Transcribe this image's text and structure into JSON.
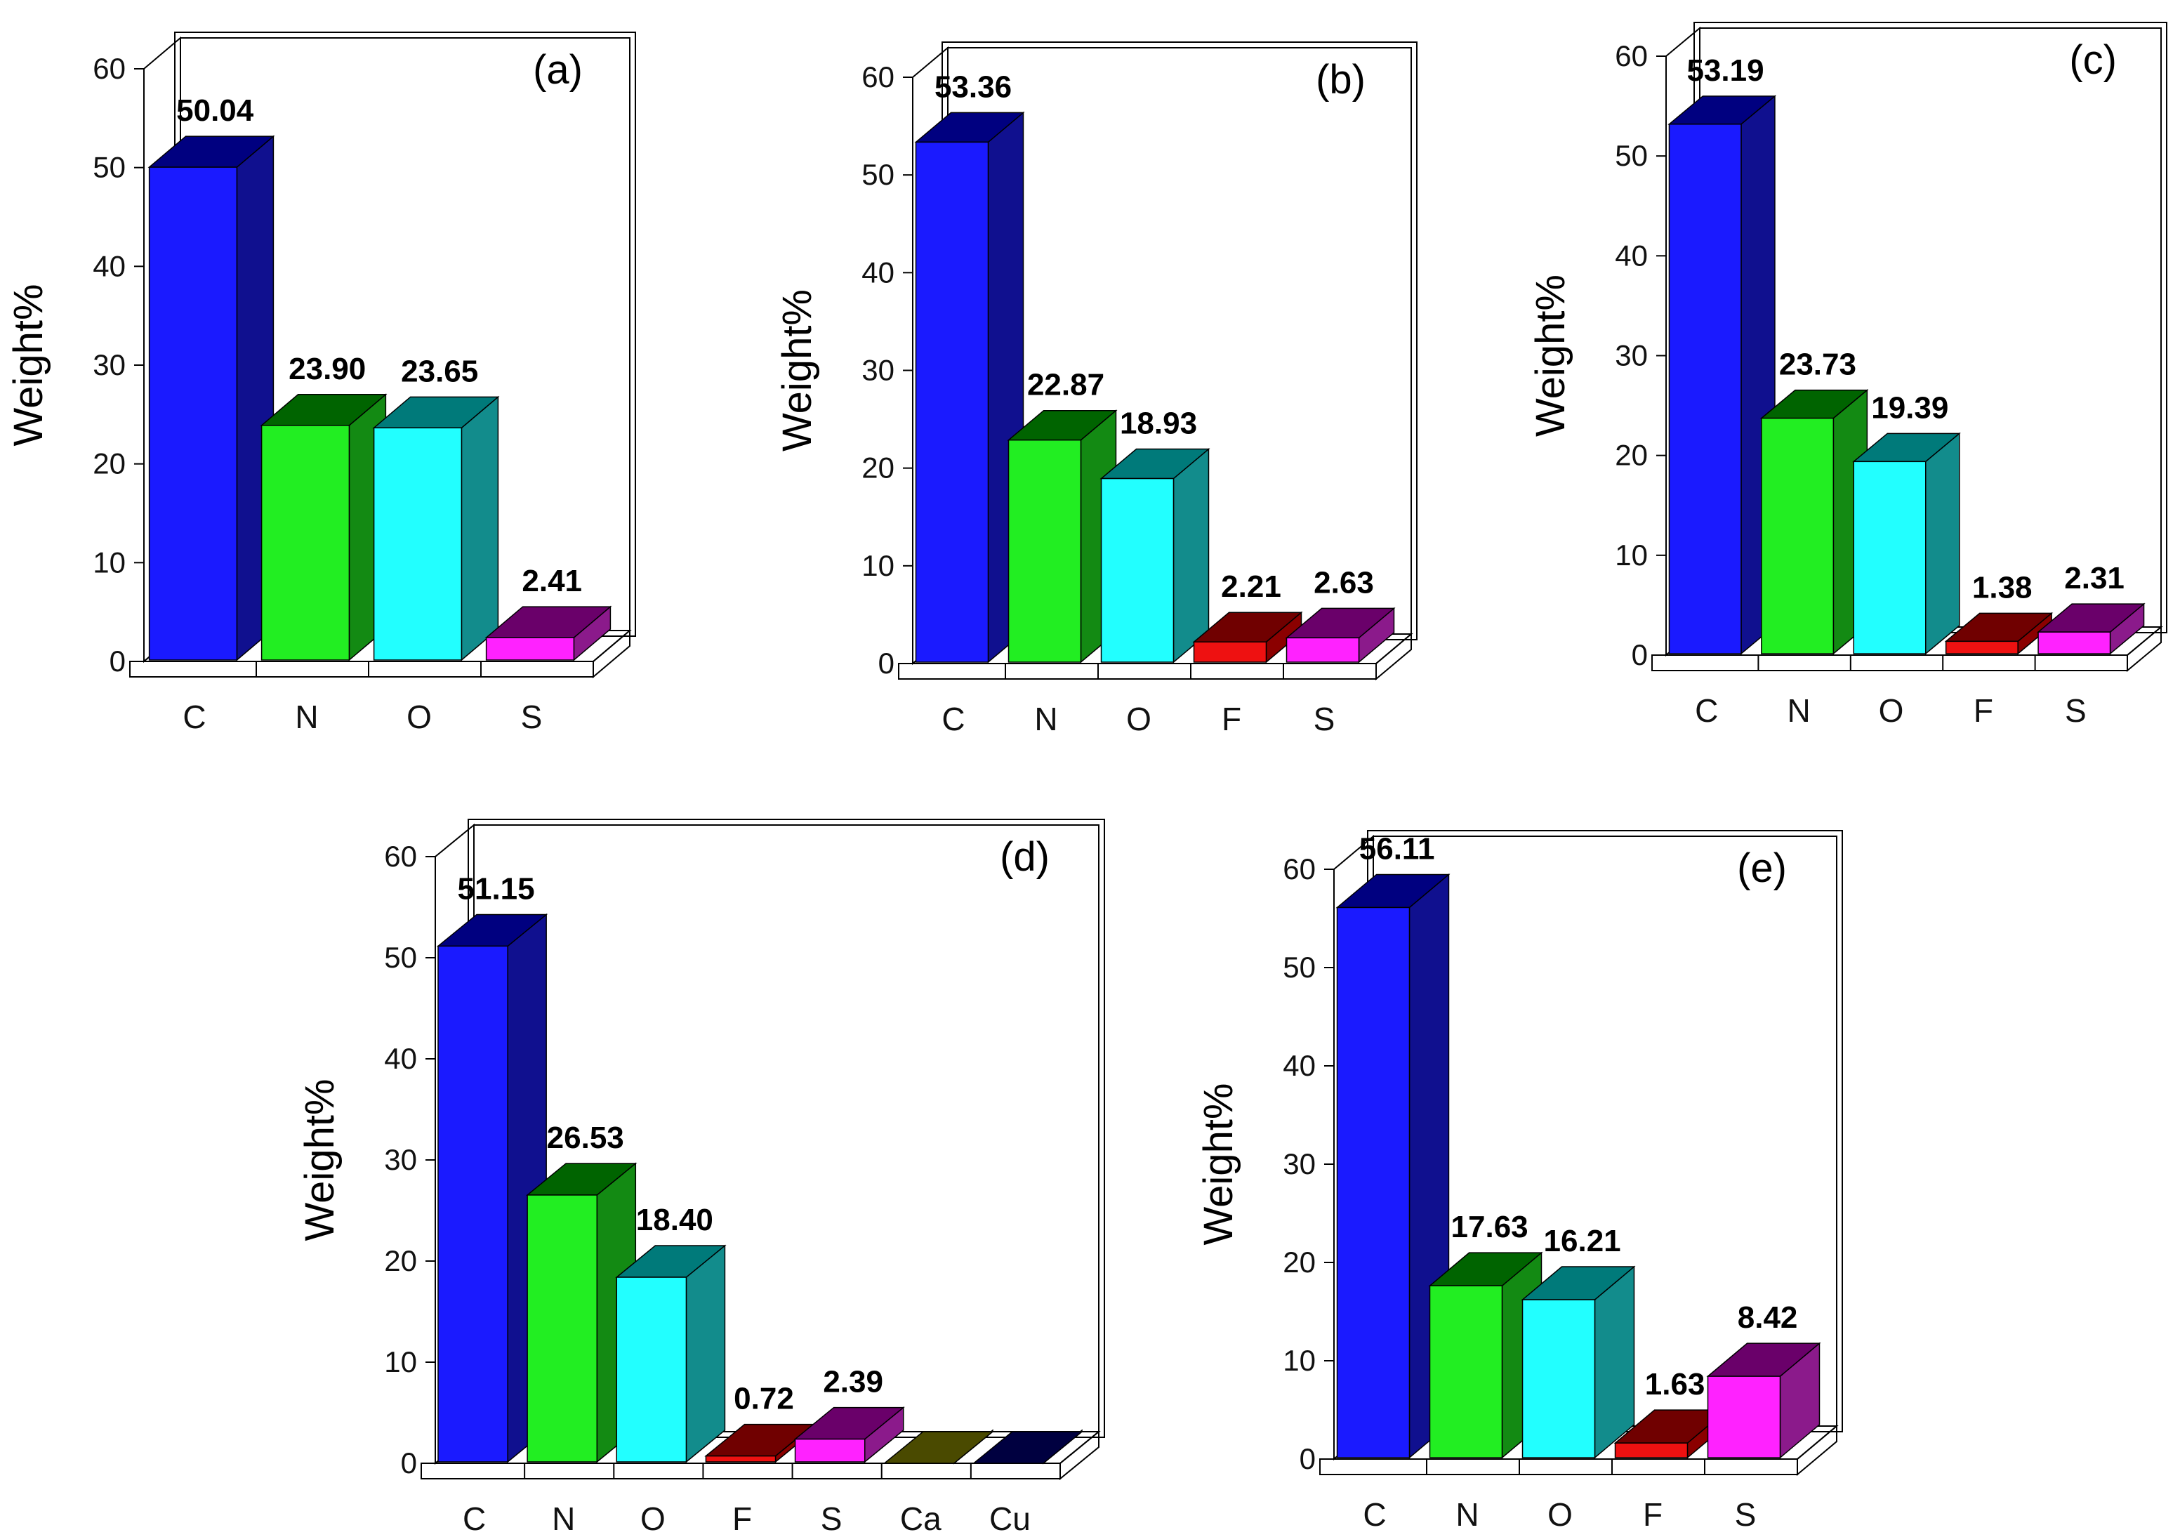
{
  "figure": {
    "colors": {
      "C": [
        "#1a1aff",
        "#10108f",
        "#000080"
      ],
      "N": [
        "#22ee22",
        "#138a13",
        "#006400"
      ],
      "O": [
        "#22ffff",
        "#128c8c",
        "#007a7a"
      ],
      "F": [
        "#ee1111",
        "#8b0000",
        "#700000"
      ],
      "S": [
        "#ff22ff",
        "#8b1a8b",
        "#6a006a"
      ],
      "Ca": [
        "#808000",
        "#5a5a00",
        "#4a4a00"
      ],
      "Cu": [
        "#000080",
        "#00004d",
        "#000040"
      ]
    }
  },
  "chart_data": [
    {
      "type": "bar",
      "panel_label": "(a)",
      "categories": [
        "C",
        "N",
        "O",
        "S"
      ],
      "values": [
        50.04,
        23.9,
        23.65,
        2.41
      ],
      "value_labels": [
        "50.04",
        "23.90",
        "23.65",
        "2.41"
      ],
      "ylabel": "Weight%",
      "xlabel": "",
      "ylim": [
        0,
        60
      ],
      "yticks": [
        "0",
        "10",
        "20",
        "30",
        "40",
        "50",
        "60"
      ]
    },
    {
      "type": "bar",
      "panel_label": "(b)",
      "categories": [
        "C",
        "N",
        "O",
        "F",
        "S"
      ],
      "values": [
        53.36,
        22.87,
        18.93,
        2.21,
        2.63
      ],
      "value_labels": [
        "53.36",
        "22.87",
        "18.93",
        "2.21",
        "2.63"
      ],
      "ylabel": "Weight%",
      "xlabel": "",
      "ylim": [
        0,
        60
      ],
      "yticks": [
        "0",
        "10",
        "20",
        "30",
        "40",
        "50",
        "60"
      ]
    },
    {
      "type": "bar",
      "panel_label": "(c)",
      "categories": [
        "C",
        "N",
        "O",
        "F",
        "S"
      ],
      "values": [
        53.19,
        23.73,
        19.39,
        1.38,
        2.31
      ],
      "value_labels": [
        "53.19",
        "23.73",
        "19.39",
        "1.38",
        "2.31"
      ],
      "ylabel": "Weight%",
      "xlabel": "",
      "ylim": [
        0,
        60
      ],
      "yticks": [
        "0",
        "10",
        "20",
        "30",
        "40",
        "50",
        "60"
      ]
    },
    {
      "type": "bar",
      "panel_label": "(d)",
      "categories": [
        "C",
        "N",
        "O",
        "F",
        "S",
        "Ca",
        "Cu"
      ],
      "values": [
        51.15,
        26.53,
        18.4,
        0.72,
        2.39,
        0,
        0
      ],
      "value_labels": [
        "51.15",
        "26.53",
        "18.40",
        "0.72",
        "2.39",
        "",
        ""
      ],
      "ylabel": "Weight%",
      "xlabel": "",
      "ylim": [
        0,
        60
      ],
      "yticks": [
        "0",
        "10",
        "20",
        "30",
        "40",
        "50",
        "60"
      ]
    },
    {
      "type": "bar",
      "panel_label": "(e)",
      "categories": [
        "C",
        "N",
        "O",
        "F",
        "S"
      ],
      "values": [
        56.11,
        17.63,
        16.21,
        1.63,
        8.42
      ],
      "value_labels": [
        "56.11",
        "17.63",
        "16.21",
        "1.63",
        "8.42"
      ],
      "ylabel": "Weight%",
      "xlabel": "",
      "ylim": [
        0,
        60
      ],
      "yticks": [
        "0",
        "10",
        "20",
        "30",
        "40",
        "50",
        "60"
      ]
    }
  ]
}
